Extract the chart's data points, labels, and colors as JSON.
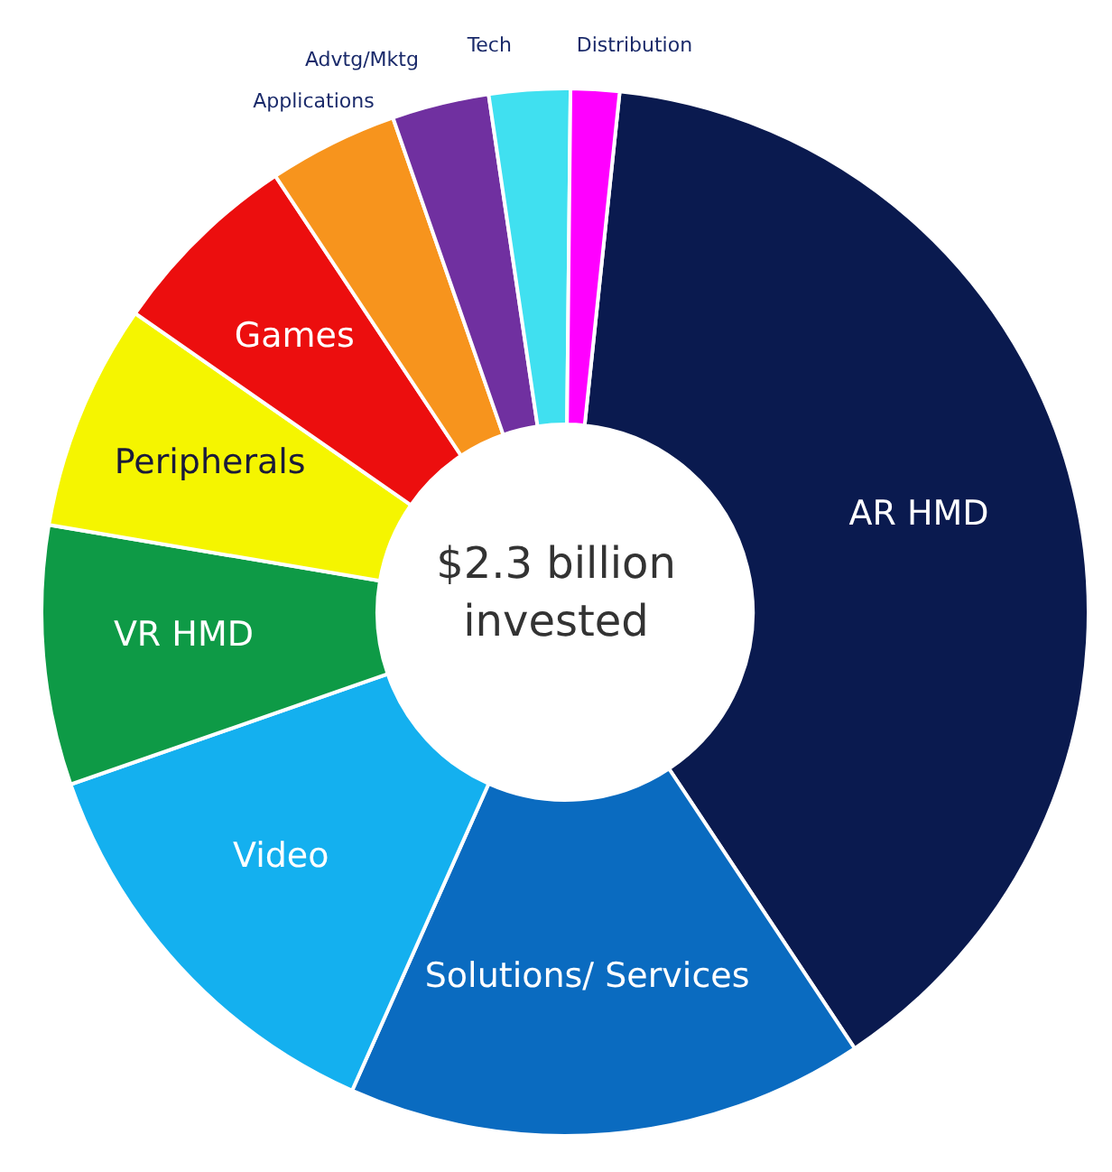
{
  "chart_data": {
    "type": "donut",
    "categories": [
      "AR HMD",
      "Solutions/ Services",
      "Video",
      "VR HMD",
      "Peripherals",
      "Games",
      "Applications",
      "Advtg/Mktg",
      "Tech",
      "Distribution"
    ],
    "values": [
      39,
      16,
      13,
      8,
      7,
      6,
      4,
      3,
      2.5,
      1.5
    ],
    "colors": [
      "#0a1a4f",
      "#0a6bc0",
      "#14b0ef",
      "#0e9a46",
      "#f5f500",
      "#ec0e0e",
      "#f7941d",
      "#7030a0",
      "#40e0f0",
      "#ff00ff"
    ],
    "annotations": [
      "$2.3 billion invested"
    ],
    "legend": false
  }
}
